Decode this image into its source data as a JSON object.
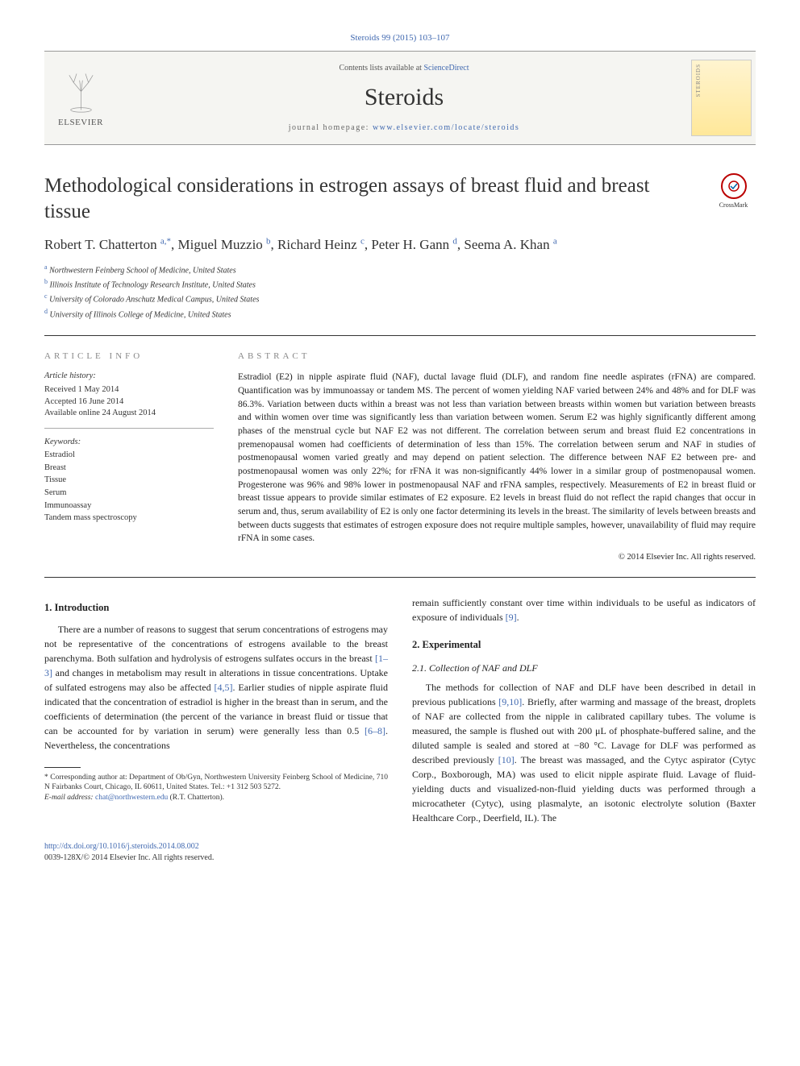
{
  "citation": "Steroids 99 (2015) 103–107",
  "masthead": {
    "contents_prefix": "Contents lists available at ",
    "contents_link": "ScienceDirect",
    "journal": "Steroids",
    "homepage_prefix": "journal homepage: ",
    "homepage_url": "www.elsevier.com/locate/steroids",
    "publisher": "ELSEVIER",
    "cover_label": "STEROIDS"
  },
  "crossmark": "CrossMark",
  "title": "Methodological considerations in estrogen assays of breast fluid and breast tissue",
  "authors_html": "Robert T. Chatterton <sup>a,*</sup>, Miguel Muzzio <sup>b</sup>, Richard Heinz <sup>c</sup>, Peter H. Gann <sup>d</sup>, Seema A. Khan <sup>a</sup>",
  "affiliations": [
    {
      "sup": "a",
      "text": "Northwestern Feinberg School of Medicine, United States"
    },
    {
      "sup": "b",
      "text": "Illinois Institute of Technology Research Institute, United States"
    },
    {
      "sup": "c",
      "text": "University of Colorado Anschutz Medical Campus, United States"
    },
    {
      "sup": "d",
      "text": "University of Illinois College of Medicine, United States"
    }
  ],
  "article_info": {
    "label": "article info",
    "history_label": "Article history:",
    "history": [
      "Received 1 May 2014",
      "Accepted 16 June 2014",
      "Available online 24 August 2014"
    ],
    "keywords_label": "Keywords:",
    "keywords": [
      "Estradiol",
      "Breast",
      "Tissue",
      "Serum",
      "Immunoassay",
      "Tandem mass spectroscopy"
    ]
  },
  "abstract": {
    "label": "abstract",
    "text": "Estradiol (E2) in nipple aspirate fluid (NAF), ductal lavage fluid (DLF), and random fine needle aspirates (rFNA) are compared. Quantification was by immunoassay or tandem MS. The percent of women yielding NAF varied between 24% and 48% and for DLF was 86.3%. Variation between ducts within a breast was not less than variation between breasts within women but variation between breasts and within women over time was significantly less than variation between women. Serum E2 was highly significantly different among phases of the menstrual cycle but NAF E2 was not different. The correlation between serum and breast fluid E2 concentrations in premenopausal women had coefficients of determination of less than 15%. The correlation between serum and NAF in studies of postmenopausal women varied greatly and may depend on patient selection. The difference between NAF E2 between pre- and postmenopausal women was only 22%; for rFNA it was non-significantly 44% lower in a similar group of postmenopausal women. Progesterone was 96% and 98% lower in postmenopausal NAF and rFNA samples, respectively. Measurements of E2 in breast fluid or breast tissue appears to provide similar estimates of E2 exposure. E2 levels in breast fluid do not reflect the rapid changes that occur in serum and, thus, serum availability of E2 is only one factor determining its levels in the breast. The similarity of levels between breasts and between ducts suggests that estimates of estrogen exposure does not require multiple samples, however, unavailability of fluid may require rFNA in some cases.",
    "copyright": "© 2014 Elsevier Inc. All rights reserved."
  },
  "body": {
    "col1": {
      "heading": "1. Introduction",
      "p1_a": "There are a number of reasons to suggest that serum concentrations of estrogens may not be representative of the concentrations of estrogens available to the breast parenchyma. Both sulfation and hydrolysis of estrogens sulfates occurs in the breast ",
      "ref1": "[1–3]",
      "p1_b": " and changes in metabolism may result in alterations in tissue concentrations. Uptake of sulfated estrogens may also be affected ",
      "ref2": "[4,5]",
      "p1_c": ". Earlier studies of nipple aspirate fluid indicated that the concentration of estradiol is higher in the breast than in serum, and the coefficients of determination (the percent of the variance in breast fluid or tissue that can be accounted for by variation in serum) were generally less than 0.5 ",
      "ref3": "[6–8]",
      "p1_d": ". Nevertheless, the concentrations"
    },
    "col2": {
      "p0_a": "remain sufficiently constant over time within individuals to be useful as indicators of exposure of individuals ",
      "ref9": "[9]",
      "p0_b": ".",
      "heading": "2. Experimental",
      "subheading": "2.1. Collection of NAF and DLF",
      "p1_a": "The methods for collection of NAF and DLF have been described in detail in previous publications ",
      "ref910": "[9,10]",
      "p1_b": ". Briefly, after warming and massage of the breast, droplets of NAF are collected from the nipple in calibrated capillary tubes. The volume is measured, the sample is flushed out with 200 μL of phosphate-buffered saline, and the diluted sample is sealed and stored at −80 °C. Lavage for DLF was performed as described previously ",
      "ref10": "[10]",
      "p1_c": ". The breast was massaged, and the Cytyc aspirator (Cytyc Corp., Boxborough, MA) was used to elicit nipple aspirate fluid. Lavage of fluid-yielding ducts and visualized-non-fluid yielding ducts was performed through a microcatheter (Cytyc), using plasmalyte, an isotonic electrolyte solution (Baxter Healthcare Corp., Deerfield, IL). The"
    }
  },
  "footnote": {
    "corr_label": "* Corresponding author at: Department of Ob/Gyn, Northwestern University Feinberg School of Medicine, 710 N Fairbanks Court, Chicago, IL 60611, United States. Tel.: +1 312 503 5272.",
    "email_label": "E-mail address: ",
    "email": "chat@northwestern.edu",
    "email_suffix": " (R.T. Chatterton)."
  },
  "doi": {
    "url": "http://dx.doi.org/10.1016/j.steroids.2014.08.002",
    "copy": "0039-128X/© 2014 Elsevier Inc. All rights reserved."
  }
}
